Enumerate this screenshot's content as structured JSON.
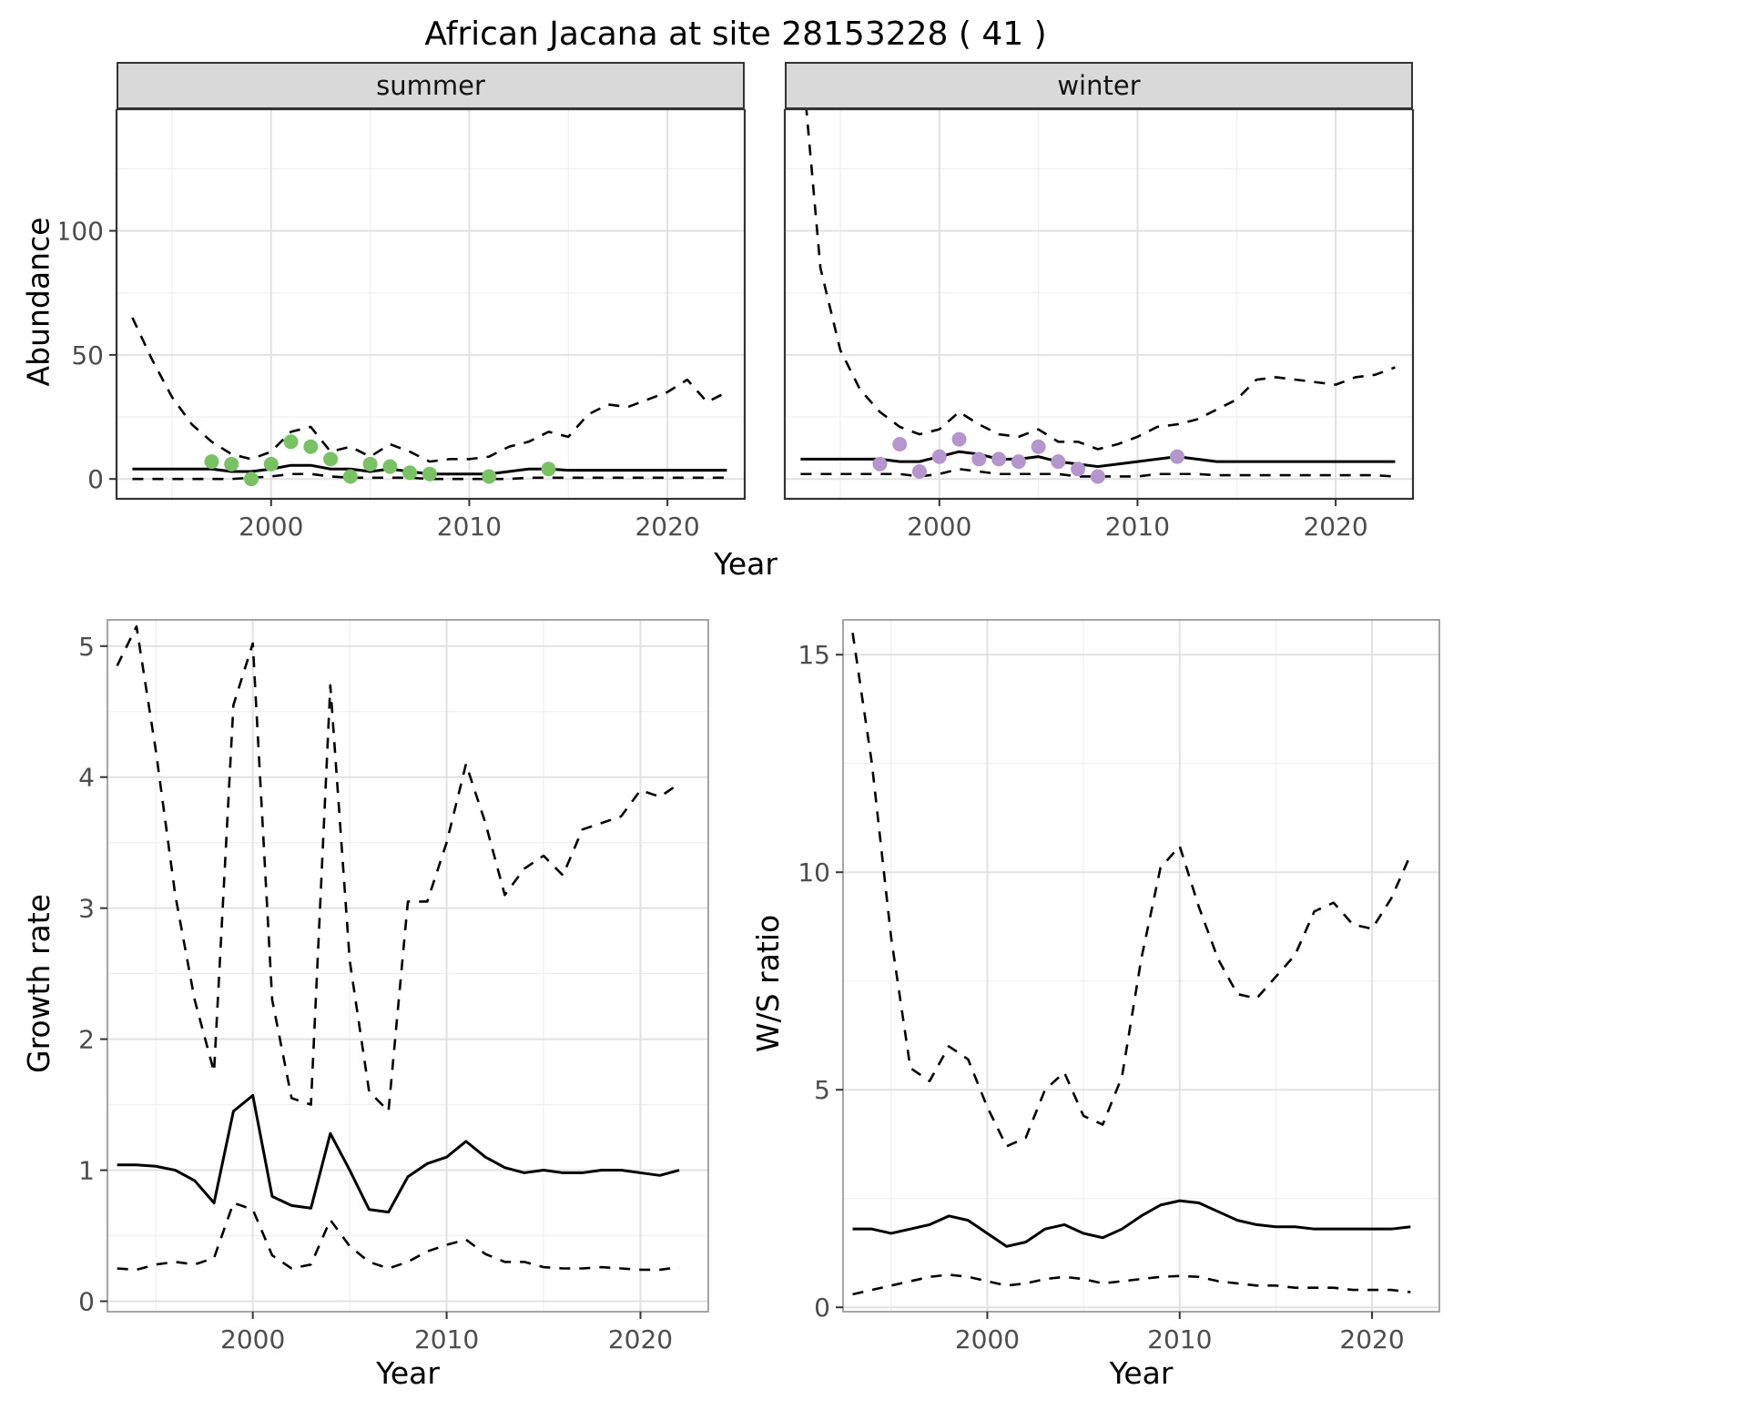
{
  "title": "African Jacana at site 28153228 ( 41 )",
  "style": {
    "panel_bg": "#ffffff",
    "strip_bg": "#d9d9d9",
    "grid_major": "#e2e2e2",
    "grid_minor": "#f0f0f0",
    "tick_label": "#4d4d4d",
    "tick_mark": "#333333",
    "summer_point": "#78c264",
    "winter_point": "#b595ce",
    "line": "#000000"
  },
  "chart_data": [
    {
      "id": "abundance_summer",
      "type": "line",
      "facet": "summer",
      "xlabel": "Year",
      "ylabel": "Abundance",
      "xlim": [
        1992.2,
        2023.9
      ],
      "ylim": [
        -8,
        149
      ],
      "xticks": [
        2000,
        2010,
        2020
      ],
      "yticks": [
        0,
        50,
        100
      ],
      "border": "#333333",
      "border_width": 2.2,
      "x": [
        1993,
        1994,
        1995,
        1996,
        1997,
        1998,
        1999,
        2000,
        2001,
        2002,
        2003,
        2004,
        2005,
        2006,
        2007,
        2008,
        2009,
        2010,
        2011,
        2012,
        2013,
        2014,
        2015,
        2016,
        2017,
        2018,
        2019,
        2020,
        2021,
        2022,
        2023
      ],
      "series": [
        {
          "name": "upper_95ci",
          "style": "dashed",
          "color": "#000000",
          "values": [
            65,
            48,
            33,
            22,
            15,
            10,
            8,
            11,
            19,
            21,
            11,
            13,
            9,
            14,
            11,
            7,
            8,
            8,
            9,
            13,
            15,
            19,
            17,
            26,
            30,
            29,
            32,
            35,
            40,
            31,
            35
          ]
        },
        {
          "name": "median",
          "style": "solid",
          "color": "#000000",
          "values": [
            4,
            4,
            4,
            4,
            4,
            3,
            3,
            4,
            5.5,
            5.5,
            4,
            4,
            3,
            4,
            3,
            2,
            2,
            2,
            2,
            3,
            4,
            4,
            3.5,
            3.5,
            3.5,
            3.5,
            3.5,
            3.5,
            3.5,
            3.5,
            3.5
          ]
        },
        {
          "name": "lower_95ci",
          "style": "dashed",
          "color": "#000000",
          "values": [
            0,
            0,
            0,
            0,
            0,
            0,
            0.5,
            1,
            2,
            2,
            1,
            0.5,
            0.5,
            0.5,
            0.5,
            0,
            0,
            0,
            0,
            0,
            0.5,
            0.5,
            0.5,
            0.5,
            0.5,
            0.5,
            0.5,
            0.5,
            0.5,
            0.5,
            0.5
          ]
        }
      ],
      "points": {
        "name": "observed_counts_summer",
        "color": "#78c264",
        "x": [
          1997,
          1998,
          1999,
          2000,
          2001,
          2002,
          2003,
          2004,
          2005,
          2006,
          2007,
          2008,
          2011,
          2014
        ],
        "y": [
          7,
          6,
          0,
          6,
          15,
          13,
          8,
          1,
          6,
          5,
          2.5,
          2,
          1,
          4
        ]
      }
    },
    {
      "id": "abundance_winter",
      "type": "line",
      "facet": "winter",
      "xlabel": "Year",
      "ylabel": "Abundance",
      "xlim": [
        1992.2,
        2023.9
      ],
      "ylim": [
        -8,
        149
      ],
      "xticks": [
        2000,
        2010,
        2020
      ],
      "yticks": [
        0,
        50,
        100
      ],
      "border": "#333333",
      "border_width": 2.2,
      "x": [
        1993,
        1994,
        1995,
        1996,
        1997,
        1998,
        1999,
        2000,
        2001,
        2002,
        2003,
        2004,
        2005,
        2006,
        2007,
        2008,
        2009,
        2010,
        2011,
        2012,
        2013,
        2014,
        2015,
        2016,
        2017,
        2018,
        2019,
        2020,
        2021,
        2022,
        2023
      ],
      "series": [
        {
          "name": "upper_95ci",
          "style": "dashed",
          "color": "#000000",
          "values": [
            175,
            85,
            52,
            36,
            27,
            21,
            18,
            20,
            27,
            22,
            18,
            17,
            20,
            15,
            15,
            12,
            14,
            17,
            21,
            22,
            24,
            28,
            32,
            40,
            41,
            40,
            39,
            38,
            41,
            42,
            45
          ]
        },
        {
          "name": "median",
          "style": "solid",
          "color": "#000000",
          "values": [
            8,
            8,
            8,
            8,
            8,
            7,
            7,
            9,
            11,
            10,
            8,
            8,
            9,
            7,
            6,
            5,
            6,
            7,
            8,
            9,
            8,
            7,
            7,
            7,
            7,
            7,
            7,
            7,
            7,
            7,
            7
          ]
        },
        {
          "name": "lower_95ci",
          "style": "dashed",
          "color": "#000000",
          "values": [
            2,
            2,
            2,
            2,
            2,
            2,
            1,
            2,
            4,
            3,
            2,
            2,
            2,
            2,
            1,
            1,
            1,
            1,
            2,
            2,
            2,
            1.5,
            1.5,
            1.5,
            1.5,
            1.5,
            1.5,
            1.5,
            1.5,
            1.5,
            1
          ]
        }
      ],
      "points": {
        "name": "observed_counts_winter",
        "color": "#b595ce",
        "x": [
          1997,
          1998,
          1999,
          2000,
          2001,
          2002,
          2003,
          2004,
          2005,
          2006,
          2007,
          2008,
          2012
        ],
        "y": [
          6,
          14,
          3,
          9,
          16,
          8,
          8,
          7,
          13,
          7,
          4,
          1,
          9
        ]
      }
    },
    {
      "id": "growth_rate",
      "type": "line",
      "xlabel": "Year",
      "ylabel": "Growth rate",
      "xlim": [
        1992.5,
        2023.5
      ],
      "ylim": [
        -0.08,
        5.2
      ],
      "xticks": [
        2000,
        2010,
        2020
      ],
      "yticks": [
        0,
        1,
        2,
        3,
        4,
        5
      ],
      "border": "#8f8f8f",
      "border_width": 1.6,
      "x": [
        1993,
        1994,
        1995,
        1996,
        1997,
        1998,
        1999,
        2000,
        2001,
        2002,
        2003,
        2004,
        2005,
        2006,
        2007,
        2008,
        2009,
        2010,
        2011,
        2012,
        2013,
        2014,
        2015,
        2016,
        2017,
        2018,
        2019,
        2020,
        2021,
        2022
      ],
      "series": [
        {
          "name": "upper_95ci",
          "style": "dashed",
          "color": "#000000",
          "values": [
            4.85,
            5.15,
            4.2,
            3.1,
            2.3,
            1.75,
            4.55,
            5.02,
            2.3,
            1.55,
            1.5,
            4.7,
            2.6,
            1.6,
            1.45,
            3.05,
            3.05,
            3.5,
            4.1,
            3.65,
            3.1,
            3.3,
            3.4,
            3.25,
            3.6,
            3.65,
            3.7,
            3.9,
            3.85,
            3.95
          ]
        },
        {
          "name": "median",
          "style": "solid",
          "color": "#000000",
          "values": [
            1.04,
            1.04,
            1.03,
            1.0,
            0.92,
            0.75,
            1.45,
            1.57,
            0.8,
            0.73,
            0.71,
            1.28,
            1.0,
            0.7,
            0.68,
            0.95,
            1.05,
            1.1,
            1.22,
            1.1,
            1.02,
            0.98,
            1.0,
            0.98,
            0.98,
            1.0,
            1.0,
            0.98,
            0.96,
            1.0
          ]
        },
        {
          "name": "lower_95ci",
          "style": "dashed",
          "color": "#000000",
          "values": [
            0.25,
            0.24,
            0.28,
            0.3,
            0.28,
            0.33,
            0.75,
            0.7,
            0.35,
            0.25,
            0.28,
            0.62,
            0.42,
            0.3,
            0.25,
            0.3,
            0.38,
            0.43,
            0.47,
            0.36,
            0.3,
            0.3,
            0.26,
            0.25,
            0.25,
            0.26,
            0.25,
            0.24,
            0.24,
            0.26
          ]
        }
      ]
    },
    {
      "id": "ws_ratio",
      "type": "line",
      "xlabel": "Year",
      "ylabel": "W/S ratio",
      "xlim": [
        1992.5,
        2023.5
      ],
      "ylim": [
        -0.1,
        15.8
      ],
      "xticks": [
        2000,
        2010,
        2020
      ],
      "yticks": [
        0,
        5,
        10,
        15
      ],
      "border": "#8f8f8f",
      "border_width": 1.6,
      "x": [
        1993,
        1994,
        1995,
        1996,
        1997,
        1998,
        1999,
        2000,
        2001,
        2002,
        2003,
        2004,
        2005,
        2006,
        2007,
        2008,
        2009,
        2010,
        2011,
        2012,
        2013,
        2014,
        2015,
        2016,
        2017,
        2018,
        2019,
        2020,
        2021,
        2022
      ],
      "series": [
        {
          "name": "upper_95ci",
          "style": "dashed",
          "color": "#000000",
          "values": [
            15.5,
            12.5,
            8.5,
            5.5,
            5.2,
            6.0,
            5.7,
            4.6,
            3.7,
            3.9,
            5.0,
            5.4,
            4.4,
            4.2,
            5.3,
            8.0,
            10.1,
            10.6,
            9.2,
            8.0,
            7.2,
            7.1,
            7.6,
            8.1,
            9.1,
            9.3,
            8.8,
            8.7,
            9.4,
            10.4
          ]
        },
        {
          "name": "median",
          "style": "solid",
          "color": "#000000",
          "values": [
            1.8,
            1.8,
            1.7,
            1.8,
            1.9,
            2.1,
            2.0,
            1.7,
            1.4,
            1.5,
            1.8,
            1.9,
            1.7,
            1.6,
            1.8,
            2.1,
            2.35,
            2.45,
            2.4,
            2.2,
            2.0,
            1.9,
            1.85,
            1.85,
            1.8,
            1.8,
            1.8,
            1.8,
            1.8,
            1.85
          ]
        },
        {
          "name": "lower_95ci",
          "style": "dashed",
          "color": "#000000",
          "values": [
            0.3,
            0.4,
            0.5,
            0.6,
            0.7,
            0.75,
            0.7,
            0.6,
            0.5,
            0.55,
            0.65,
            0.7,
            0.65,
            0.55,
            0.6,
            0.65,
            0.7,
            0.72,
            0.7,
            0.6,
            0.55,
            0.5,
            0.5,
            0.45,
            0.45,
            0.45,
            0.4,
            0.4,
            0.4,
            0.35
          ]
        }
      ]
    }
  ]
}
